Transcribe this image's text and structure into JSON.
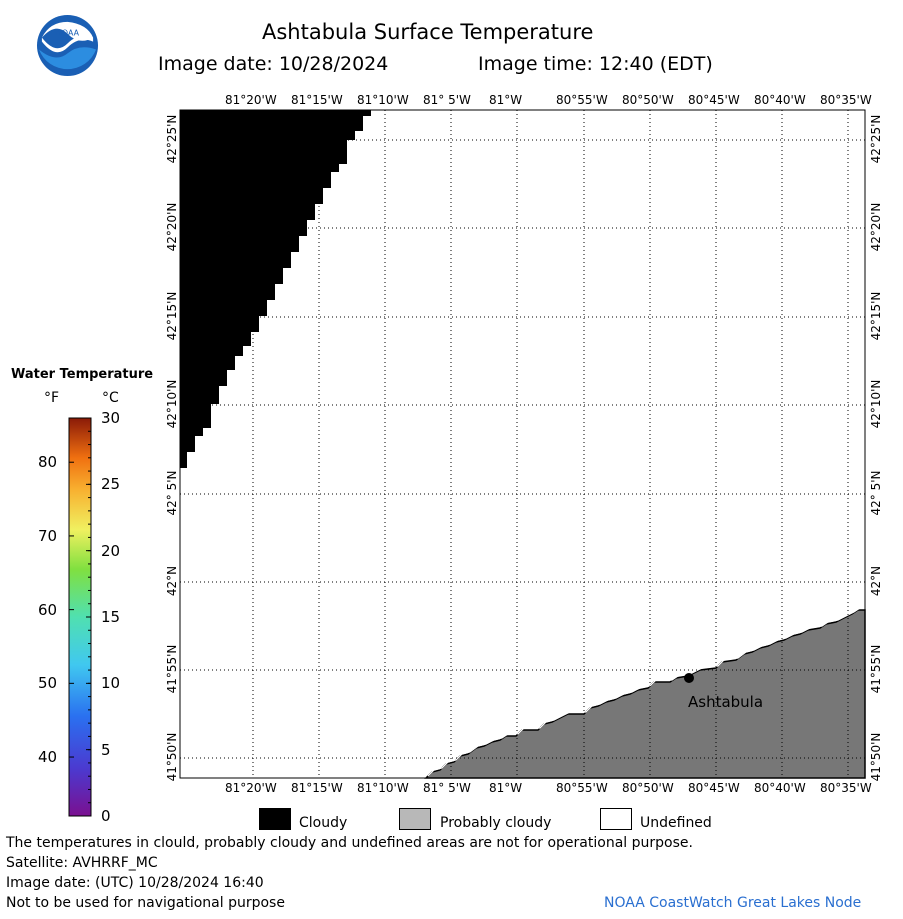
{
  "header": {
    "logo_text": "NOAA",
    "title": "Ashtabula Surface Temperature",
    "image_date": "Image date: 10/28/2024",
    "image_time": "Image time: 12:40 (EDT)"
  },
  "map": {
    "lon_labels": [
      "81°20'W",
      "81°15'W",
      "81°10'W",
      "81° 5'W",
      "81°W",
      "80°55'W",
      "80°50'W",
      "80°45'W",
      "80°40'W",
      "80°35'W"
    ],
    "lat_labels": [
      "42°25'N",
      "42°20'N",
      "42°15'N",
      "42°10'N",
      "42° 5'N",
      "42°N",
      "41°55'N",
      "41°50'N"
    ],
    "city": {
      "name": "Ashtabula"
    },
    "colors": {
      "cloudy": "#000000",
      "probably_cloudy": "#777777",
      "undefined": "#ffffff"
    }
  },
  "scale": {
    "title": "Water Temperature",
    "unit_f": "°F",
    "unit_c": "°C",
    "f_labels": [
      "80",
      "70",
      "60",
      "50",
      "40"
    ],
    "c_labels": [
      "30",
      "25",
      "20",
      "15",
      "10",
      "5",
      "0"
    ]
  },
  "legend": {
    "cloudy": "Cloudy",
    "probably_cloudy": "Probably cloudy",
    "undefined": "Undefined"
  },
  "footer": {
    "line1": "The temperatures in clould, probably cloudy and undefined areas are not for operational purpose.",
    "line2": "Satellite: AVHRRF_MC",
    "line3": "Image date: (UTC) 10/28/2024  16:40",
    "line4": "Not to be used for navigational purpose",
    "credit": "NOAA CoastWatch Great Lakes Node"
  }
}
